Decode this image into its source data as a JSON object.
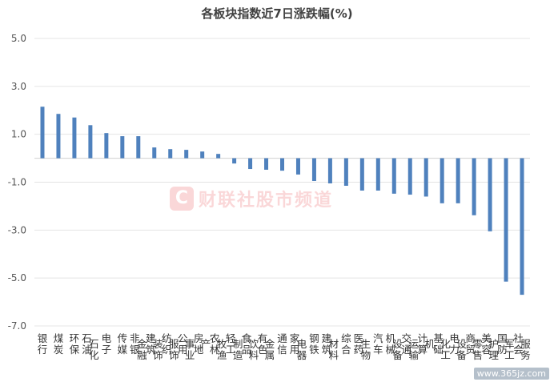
{
  "chart_data": {
    "type": "bar",
    "title": "各板块指数近7日涨跌幅(%)",
    "xlabel": "",
    "ylabel": "",
    "ylim": [
      -7.0,
      5.0
    ],
    "yticks": [
      "5.0",
      "3.0",
      "1.0",
      "-1.0",
      "-3.0",
      "-5.0",
      "-7.0"
    ],
    "ytick_values": [
      5,
      3,
      1,
      -1,
      -3,
      -5,
      -7
    ],
    "grid": true,
    "bar_color": "#4f81bd",
    "categories": [
      "银行",
      "煤炭",
      "环保",
      "石油石化",
      "电子",
      "传媒",
      "非银金融",
      "建筑装饰",
      "纺织服饰",
      "公用事业",
      "房地产",
      "农林牧渔",
      "轻工制造",
      "食品饮料",
      "有色金属",
      "通信",
      "家用电器",
      "钢铁",
      "建筑材料",
      "综合",
      "医药生物",
      "汽车",
      "机械设备",
      "交通运输",
      "计算机",
      "基础化工",
      "电力设备",
      "商贸零售",
      "美容护理",
      "国防军工",
      "社会服务"
    ],
    "values": [
      2.15,
      1.85,
      1.7,
      1.38,
      1.05,
      0.92,
      0.92,
      0.45,
      0.38,
      0.35,
      0.28,
      0.18,
      -0.22,
      -0.45,
      -0.48,
      -0.52,
      -0.68,
      -0.95,
      -1.05,
      -1.15,
      -1.35,
      -1.35,
      -1.48,
      -1.52,
      -1.6,
      -1.88,
      -1.88,
      -2.38,
      -3.05,
      -5.15,
      -5.7
    ]
  },
  "watermark": {
    "logo": "C",
    "text": "财联社股市频道"
  },
  "site_mark": "www.365jz.com"
}
